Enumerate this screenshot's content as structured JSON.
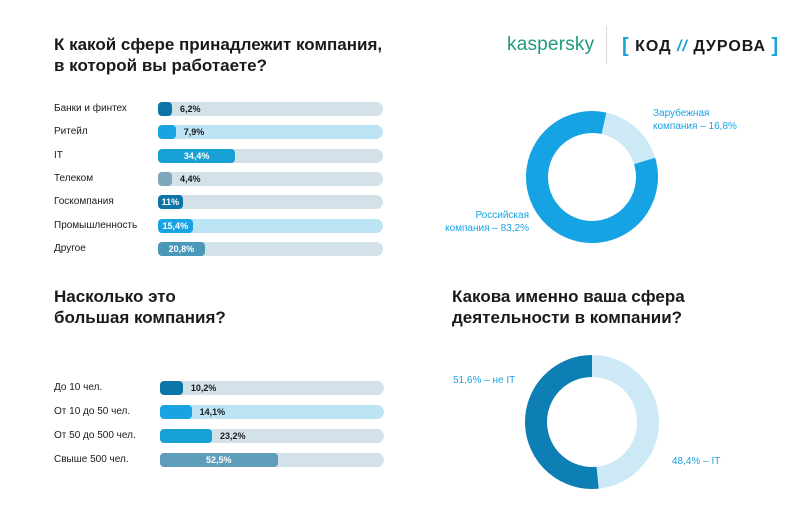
{
  "logos": {
    "kaspersky": "kaspersky",
    "kod_bracket_open": "[",
    "kod_word1": "КОД",
    "kod_slashes": "//",
    "kod_word2": "ДУРОВА",
    "kod_bracket_close": "]"
  },
  "questions": {
    "q1": {
      "line1": "К какой сфере принадлежит компания,",
      "line2": "в которой вы работаете?"
    },
    "q2": {
      "line1": "Насколько это",
      "line2": "большая компания?"
    },
    "q3": {
      "line1": "Какова именно ваша сфера",
      "line2": "деятельности в компании?"
    }
  },
  "colors": {
    "dark": "#0a75a6",
    "bright": "#1aa3e3",
    "medium": "#16a0d3",
    "gray": "#7ea7bb",
    "steel": "#4a97b8",
    "track_gray": "#d3e1e8",
    "track_light": "#bde4f4",
    "donut_bright": "#15a3e4",
    "donut_light": "#cde9f6",
    "donut_dark": "#0d7fb4",
    "label_blue": "#1aa3e3"
  },
  "chart_data": [
    {
      "type": "bar",
      "orientation": "horizontal",
      "title": "К какой сфере принадлежит компания, в которой вы работаете?",
      "categories": [
        "Банки и финтех",
        "Ритейл",
        "IT",
        "Телеком",
        "Госкомпания",
        "Промышленность",
        "Другое"
      ],
      "values": [
        6.2,
        7.9,
        34.4,
        4.4,
        11,
        15.4,
        20.8
      ],
      "value_labels": [
        "6,2%",
        "7,9%",
        "34,4%",
        "4,4%",
        "11%",
        "15,4%",
        "20,8%"
      ],
      "fill_colors": [
        "#0a75a6",
        "#1aa3e3",
        "#16a0d3",
        "#7ea7bb",
        "#0a75a6",
        "#1aa3e3",
        "#4a97b8"
      ],
      "track_colors": [
        "#d3e1e8",
        "#bde4f4",
        "#d3e1e8",
        "#d3e1e8",
        "#d3e1e8",
        "#bde4f4",
        "#d3e1e8"
      ],
      "label_inside": [
        false,
        false,
        true,
        false,
        true,
        true,
        true
      ],
      "xlim": [
        0,
        100
      ]
    },
    {
      "type": "bar",
      "orientation": "horizontal",
      "title": "Насколько это большая компания?",
      "categories": [
        "До 10 чел.",
        "От 10 до 50 чел.",
        "От 50 до 500 чел.",
        "Свыше 500 чел."
      ],
      "values": [
        10.2,
        14.1,
        23.2,
        52.5
      ],
      "value_labels": [
        "10,2%",
        "14,1%",
        "23,2%",
        "52,5%"
      ],
      "fill_colors": [
        "#0a75a6",
        "#1aa3e3",
        "#16a0d3",
        "#5e9db9"
      ],
      "track_colors": [
        "#d3e1e8",
        "#bde4f4",
        "#d3e1e8",
        "#d3e1e8"
      ],
      "label_inside": [
        false,
        false,
        false,
        true
      ],
      "xlim": [
        0,
        100
      ]
    },
    {
      "type": "pie",
      "donut": true,
      "categories": [
        "Российская компания",
        "Зарубежная компания"
      ],
      "values": [
        83.2,
        16.8
      ],
      "colors": [
        "#15a3e4",
        "#cde9f6"
      ],
      "labels": [
        {
          "line1": "Российская",
          "line2": "компания – 83,2%"
        },
        {
          "line1": "Зарубежная",
          "line2": "компания – 16,8%"
        }
      ]
    },
    {
      "type": "pie",
      "donut": true,
      "title": "Какова именно ваша сфера деятельности в компании?",
      "categories": [
        "не IT",
        "IT"
      ],
      "values": [
        51.6,
        48.4
      ],
      "colors": [
        "#0d7fb4",
        "#cde9f6"
      ],
      "labels": [
        "51,6% – не IT",
        "48,4% – IT"
      ]
    }
  ]
}
